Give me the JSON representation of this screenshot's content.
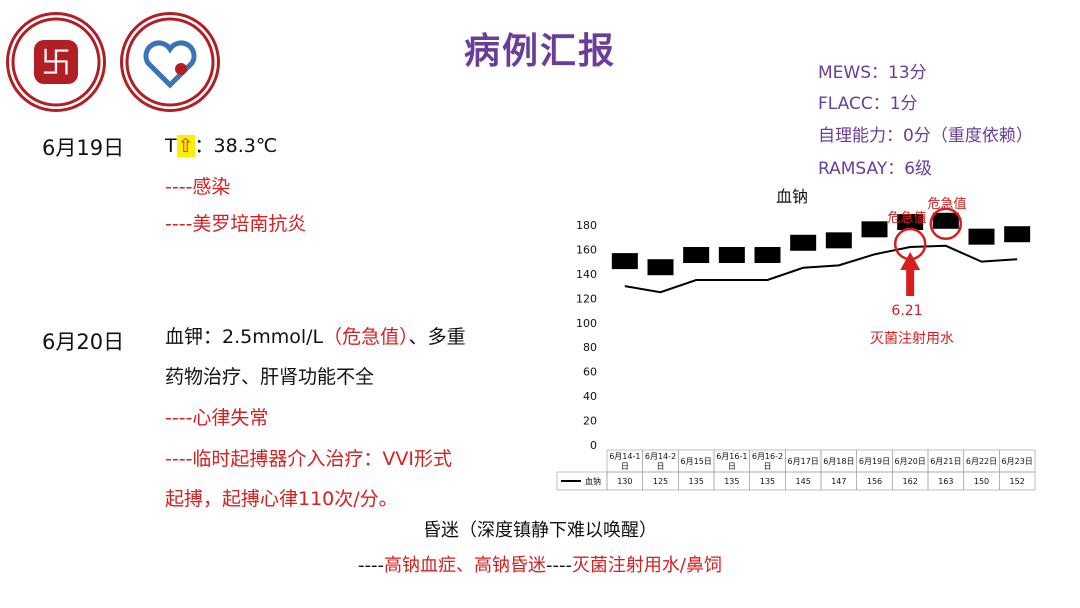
{
  "title": "病例汇报",
  "scores": {
    "mews": "MEWS：13分",
    "flacc": "FLACC：1分",
    "self_care": "自理能力：0分（重度依赖）",
    "ramsay": "RAMSAY：6级"
  },
  "events": [
    {
      "date": "6月19日",
      "temp_prefix": "T",
      "temp_arrow": "⇧",
      "temp_value": "：38.3℃",
      "line1": "----感染",
      "line2": "----美罗培南抗炎"
    },
    {
      "date": "6月20日",
      "k_label": "血钾：2.5mmol/L",
      "k_critical": "（危急值）",
      "k_rest": "、多重",
      "line_b": "药物治疗、肝肾功能不全",
      "line_c": "----心律失常",
      "line_d": "----临时起搏器介入治疗：VVI形式",
      "line_e": "起搏，起搏心律110次/分。"
    }
  ],
  "chart_data": {
    "type": "line",
    "title": "血钠",
    "categories": [
      "6月14-1日",
      "6月14-2日",
      "6月15日",
      "6月16-1日",
      "6月16-2日",
      "6月17日",
      "6月18日",
      "6月19日",
      "6月20日",
      "6月21日",
      "6月22日",
      "6月23日"
    ],
    "series": [
      {
        "name": "血钠",
        "values": [
          130,
          125,
          135,
          135,
          135,
          145,
          147,
          156,
          162,
          163,
          150,
          152
        ]
      }
    ],
    "ylim": [
      0,
      180
    ],
    "yticks": [
      0,
      20,
      40,
      60,
      80,
      100,
      120,
      140,
      160,
      180
    ],
    "annotations": {
      "critical_label_1": "危急值",
      "critical_label_2": "危急值",
      "arrow_date": "6.21",
      "arrow_note": "灭菌注射用水"
    },
    "accent": "#d62020"
  },
  "footer": {
    "state": "昏迷（深度镇静下难以唤醒）",
    "prefix": "----",
    "cause": "高钠血症、高钠昏迷",
    "mid": "----",
    "treatment": "灭菌注射用水/鼻饲"
  }
}
